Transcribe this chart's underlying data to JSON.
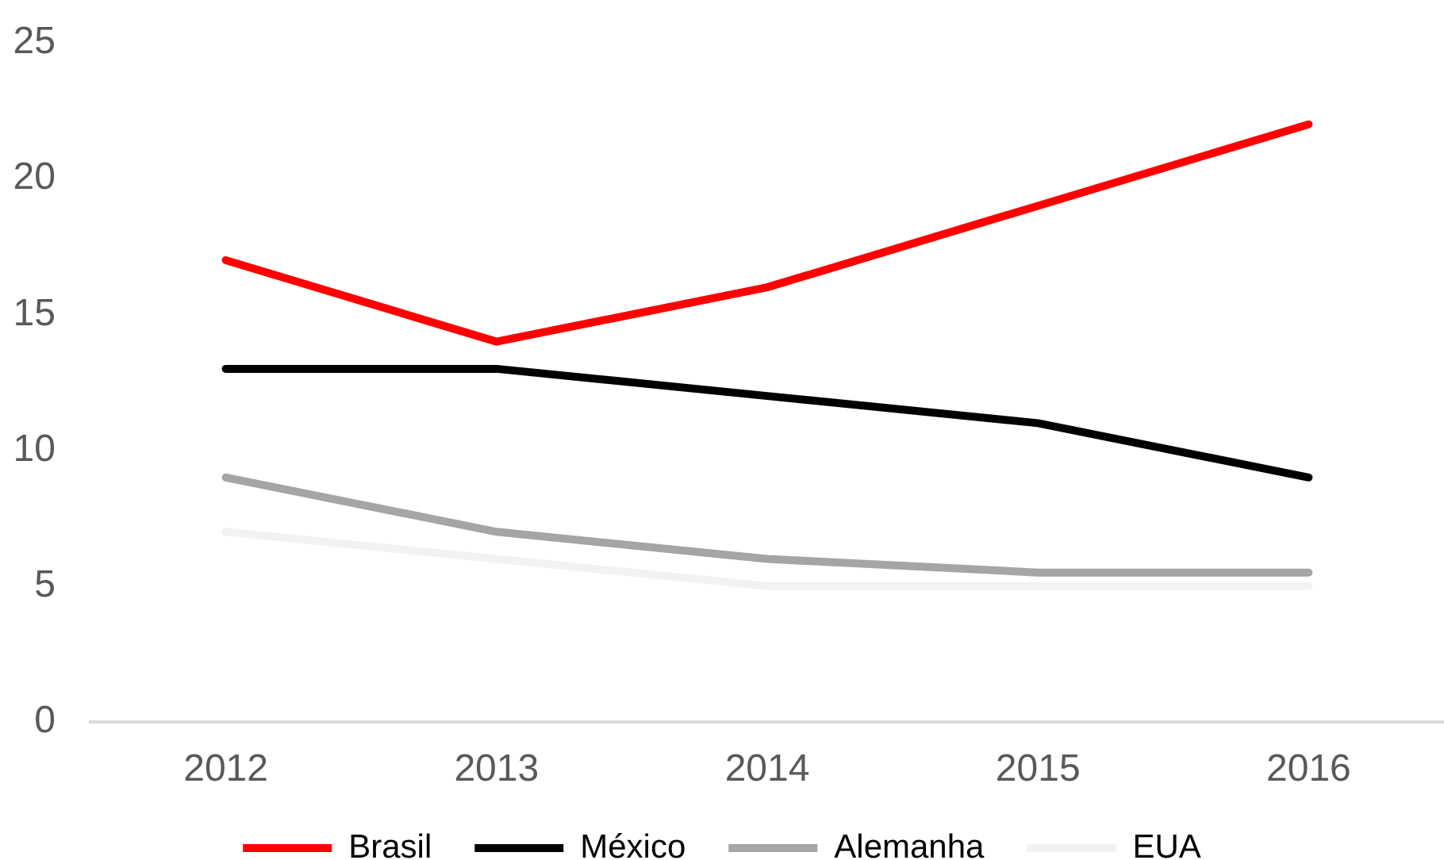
{
  "chart_data": {
    "type": "line",
    "categories": [
      "2012",
      "2013",
      "2014",
      "2015",
      "2016"
    ],
    "series": [
      {
        "name": "Brasil",
        "color": "#ff0000",
        "values": [
          17,
          14,
          16,
          19,
          22
        ]
      },
      {
        "name": "México",
        "color": "#000000",
        "values": [
          13,
          13,
          12,
          11,
          9
        ]
      },
      {
        "name": "Alemanha",
        "color": "#a5a5a5",
        "values": [
          9,
          7,
          6,
          5.5,
          5.5
        ]
      },
      {
        "name": "EUA",
        "color": "#f2f2f2",
        "values": [
          7,
          6,
          5,
          5,
          5
        ]
      }
    ],
    "ylim": [
      0,
      25
    ],
    "yticks": [
      0,
      5,
      10,
      15,
      20,
      25
    ],
    "grid": false,
    "legend": "bottom",
    "marker": "none",
    "line_style": "solid"
  }
}
